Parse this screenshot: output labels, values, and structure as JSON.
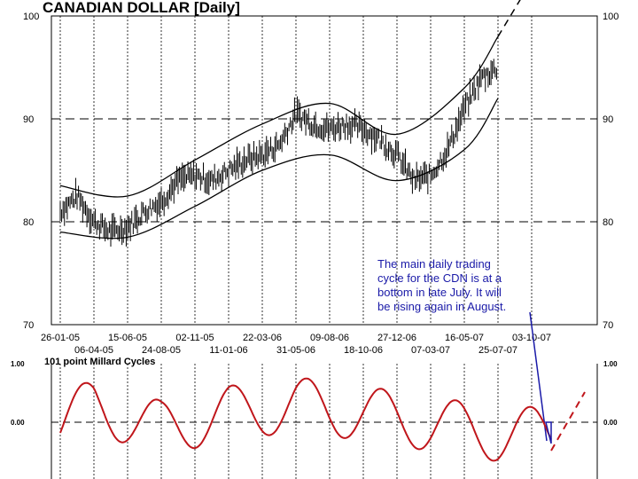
{
  "chart_data": [
    {
      "type": "line",
      "title": "CANADIAN DOLLAR  [Daily]",
      "ylim": [
        70,
        100
      ],
      "yticks": [
        70,
        80,
        90,
        100
      ],
      "x_tick_labels_top_row": [
        "26-01-05",
        "15-06-05",
        "02-11-05",
        "22-03-06",
        "09-08-06",
        "27-12-06",
        "16-05-07",
        "03-10-07"
      ],
      "x_tick_labels_bottom_row": [
        "06-04-05",
        "24-08-05",
        "11-01-06",
        "31-05-06",
        "18-10-06",
        "07-03-07",
        "25-07-07"
      ],
      "grid": "vertical dotted lines at each date tick; horizontal dashed lines at 80 and 90",
      "series": [
        {
          "style": "price bars (daily)",
          "x": [
            "26-01-05",
            "01-03-05",
            "06-04-05",
            "10-05-05",
            "15-06-05",
            "20-07-05",
            "24-08-05",
            "28-09-05",
            "02-11-05",
            "07-12-05",
            "11-01-06",
            "15-02-06",
            "22-03-06",
            "26-04-06",
            "31-05-06",
            "05-07-06",
            "09-08-06",
            "13-09-06",
            "18-10-06",
            "22-11-06",
            "27-12-06",
            "31-01-07",
            "07-03-07",
            "11-04-07",
            "16-05-07",
            "20-06-07",
            "25-07-07"
          ],
          "y": [
            81,
            82.5,
            80,
            79,
            79.5,
            81,
            82,
            84,
            84.5,
            84,
            85,
            86,
            86.5,
            87.5,
            90.5,
            89.5,
            89,
            89.5,
            89,
            88,
            86.5,
            84,
            84.5,
            87,
            91,
            94,
            95
          ]
        },
        {
          "style": "upper channel",
          "x": [
            "26-01-05",
            "15-06-05",
            "02-11-05",
            "22-03-06",
            "09-08-06",
            "27-12-06",
            "16-05-07",
            "25-07-07"
          ],
          "y": [
            83.5,
            82.5,
            86,
            89.5,
            91.5,
            88.5,
            93,
            98
          ]
        },
        {
          "style": "lower channel",
          "x": [
            "26-01-05",
            "15-06-05",
            "02-11-05",
            "22-03-06",
            "09-08-06",
            "27-12-06",
            "16-05-07",
            "25-07-07"
          ],
          "y": [
            79,
            78.5,
            81.5,
            85,
            86.5,
            84,
            87,
            92
          ]
        },
        {
          "style": "dashed projection",
          "x": [
            "25-07-07",
            "03-10-07"
          ],
          "y": [
            98,
            102
          ]
        }
      ]
    },
    {
      "type": "line",
      "title": "101 point Millard Cycles",
      "ylim": [
        -1,
        1
      ],
      "yticks": [
        "1.00",
        "0.00"
      ],
      "series": [
        {
          "style": "cycle oscillator (red)",
          "x": [
            "26-01-05",
            "06-04-05",
            "24-08-05",
            "11-01-06",
            "31-05-06",
            "18-10-06",
            "07-03-07",
            "25-07-07"
          ],
          "y": [
            0.0,
            0.55,
            -0.2,
            0.3,
            0.6,
            0.3,
            -0.05,
            -0.4
          ]
        }
      ]
    }
  ],
  "annotation": [
    "The main daily trading",
    "cycle for the CDN is at a",
    "bottom in late July.  It will",
    "be rising again in August."
  ],
  "colors": {
    "price": "#000000",
    "cycle": "#c0161b",
    "annotation": "#1a1aa8"
  }
}
